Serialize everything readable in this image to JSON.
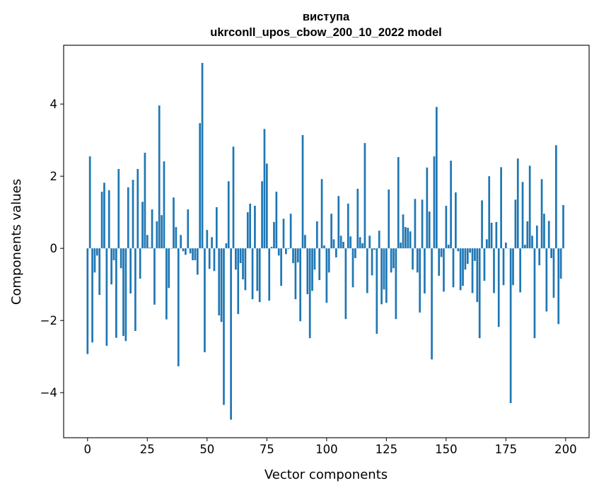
{
  "chart_data": {
    "type": "bar",
    "title": [
      "виступа",
      "ukrconll_upos_cbow_200_10_2022 model"
    ],
    "xlabel": "Vector components",
    "ylabel": "Components values",
    "xlim": [
      -10,
      209.8
    ],
    "ylim": [
      -5.25,
      5.63
    ],
    "xticks": [
      0,
      25,
      50,
      75,
      100,
      125,
      150,
      175,
      200
    ],
    "yticks": [
      -4,
      -2,
      0,
      2,
      4
    ],
    "ytick_labels": [
      "−4",
      "−2",
      "0",
      "2",
      "4"
    ],
    "grid": false,
    "color": "#1f77b4",
    "values": [
      -2.93,
      2.55,
      -2.61,
      -0.67,
      -0.2,
      -1.29,
      1.57,
      1.82,
      -2.7,
      1.61,
      -1.0,
      -0.33,
      -2.48,
      2.2,
      -0.55,
      -2.43,
      -2.57,
      1.69,
      -1.25,
      1.9,
      -2.29,
      2.2,
      -0.84,
      1.29,
      2.65,
      0.37,
      0.02,
      1.08,
      -1.56,
      0.75,
      3.96,
      0.92,
      2.41,
      -1.97,
      -1.1,
      -0.01,
      1.41,
      0.59,
      -3.27,
      0.37,
      -0.08,
      -0.18,
      1.08,
      -0.14,
      -0.33,
      -0.33,
      -0.73,
      3.47,
      5.14,
      -2.88,
      0.51,
      -0.57,
      0.31,
      -0.63,
      1.14,
      -1.86,
      -2.04,
      -4.34,
      0.14,
      1.86,
      -4.75,
      2.82,
      -0.59,
      -1.82,
      -0.41,
      -0.86,
      -1.16,
      1.0,
      1.24,
      -1.41,
      1.18,
      -1.18,
      -1.49,
      1.86,
      3.31,
      2.35,
      -1.45,
      0.04,
      0.73,
      1.57,
      -0.2,
      -1.04,
      0.82,
      -0.16,
      -0.02,
      0.96,
      -0.41,
      -1.41,
      -0.39,
      -2.02,
      3.14,
      0.37,
      -1.27,
      -2.49,
      -1.18,
      -0.59,
      0.75,
      -0.88,
      1.92,
      0.08,
      -1.51,
      -0.67,
      0.96,
      0.25,
      -0.25,
      1.45,
      0.35,
      0.18,
      -1.96,
      1.24,
      0.33,
      -1.08,
      -0.27,
      1.65,
      0.31,
      0.14,
      2.92,
      -1.24,
      0.35,
      -0.75,
      -0.04,
      -2.37,
      0.49,
      -1.55,
      -1.14,
      -1.51,
      1.63,
      -0.67,
      -0.55,
      -1.96,
      2.53,
      0.16,
      0.94,
      0.59,
      0.57,
      0.47,
      -0.59,
      1.37,
      -0.67,
      -1.78,
      1.35,
      -1.25,
      2.24,
      1.02,
      -3.08,
      2.55,
      3.92,
      -0.76,
      -0.24,
      -1.2,
      1.18,
      0.1,
      2.43,
      -1.08,
      1.55,
      -0.08,
      -1.16,
      -1.04,
      -0.59,
      -0.43,
      -0.12,
      -1.24,
      -0.35,
      -1.49,
      -2.49,
      1.33,
      -0.9,
      0.25,
      2.0,
      0.71,
      -1.24,
      0.73,
      -2.18,
      2.25,
      -1.02,
      0.16,
      0.0,
      -4.29,
      -1.02,
      1.35,
      2.49,
      -1.22,
      1.84,
      0.1,
      0.75,
      2.29,
      0.35,
      -2.49,
      0.63,
      -0.47,
      1.92,
      0.96,
      -1.75,
      0.76,
      -0.27,
      -1.37,
      2.86,
      -2.1,
      -0.84,
      1.2
    ]
  }
}
